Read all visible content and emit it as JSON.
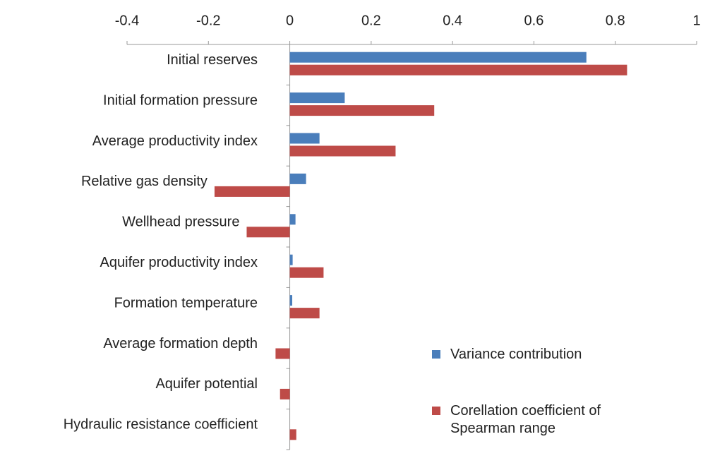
{
  "chart_data": {
    "type": "hbar",
    "categories": [
      "Initial reserves",
      "Initial formation pressure",
      "Average productivity index",
      "Relative gas density",
      "Wellhead  pressure",
      "Aquifer productivity index",
      "Formation temperature",
      "Average formation depth",
      "Aquifer potential",
      "Hydraulic resistance coefficient"
    ],
    "series": [
      {
        "name": "Variance contribution",
        "color": "#4a7ebb",
        "values": [
          0.729,
          0.135,
          0.073,
          0.04,
          0.014,
          0.007,
          0.006,
          0,
          0,
          0
        ]
      },
      {
        "name": "Corellation coefficient of Spearman range",
        "color": "#be4b48",
        "values": [
          0.829,
          0.355,
          0.26,
          -0.185,
          -0.106,
          0.083,
          0.073,
          -0.035,
          -0.024,
          0.016
        ]
      }
    ],
    "xlim": [
      -0.4,
      1
    ],
    "xticks": [
      -0.4,
      -0.2,
      0,
      0.2,
      0.4,
      0.6,
      0.8,
      1
    ],
    "grid": false
  }
}
